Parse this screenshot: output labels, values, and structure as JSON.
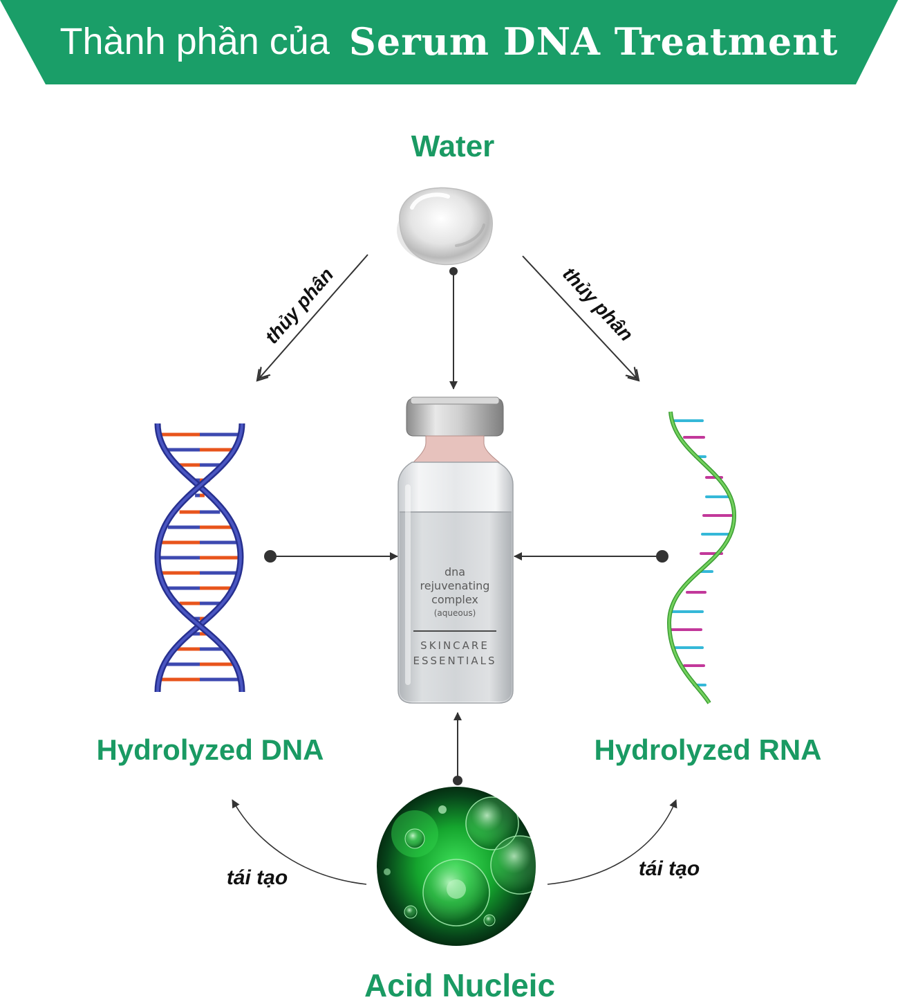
{
  "header": {
    "title_prefix": "Thành phần của",
    "title_main": "Serum DNA Treatment",
    "color": "#1a9e68"
  },
  "nodes": {
    "water": {
      "label": "Water",
      "icon": "water-drop"
    },
    "dna": {
      "label": "Hydrolyzed DNA",
      "icon": "dna-double-helix"
    },
    "rna": {
      "label": "Hydrolyzed RNA",
      "icon": "rna-single-helix"
    },
    "acid": {
      "label": "Acid Nucleic",
      "icon": "green-cells"
    },
    "serum": {
      "icon": "serum-vial",
      "vial_text": [
        "dna",
        "rejuvenating",
        "complex",
        "(aqueous)"
      ],
      "brand_text": [
        "SKINCARE",
        "ESSENTIALS"
      ]
    }
  },
  "edges": {
    "water_to_dna": "thủy phân",
    "water_to_rna": "thủy phân",
    "acid_to_dna": "tái tạo",
    "acid_to_rna": "tái tạo"
  },
  "colors": {
    "label_green": "#1a9a63",
    "dna_blue": "#3d49b0",
    "dna_orange": "#e8541c",
    "rna_green": "#5cc14a",
    "rna_cyan": "#35b8d8",
    "rna_magenta": "#c2389a"
  }
}
